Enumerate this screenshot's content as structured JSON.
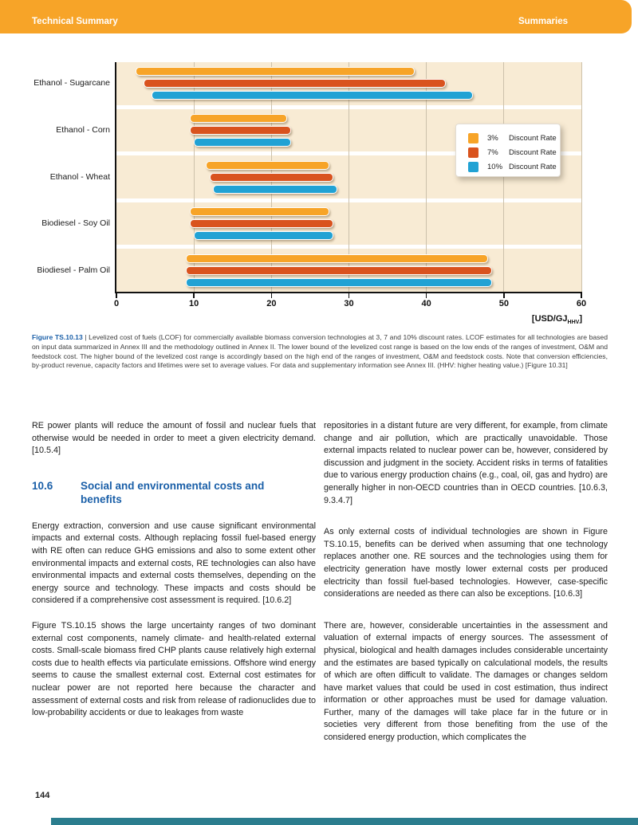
{
  "header": {
    "left": "Technical Summary",
    "right": "Summaries"
  },
  "figure_caption": {
    "label": "Figure TS.10.13",
    "separator": " | ",
    "text": "Levelized cost of fuels (LCOF) for commercially available biomass conversion technologies at 3, 7 and 10% discount rates. LCOF estimates for all technologies are based on input data summarized in Annex III and the methodology outlined in Annex II. The lower bound of the levelized cost range is based on the low ends of the ranges of investment, O&M and feedstock cost. The higher bound of the levelized cost range is accordingly based on the high end of the ranges of investment, O&M and feedstock costs. Note that conversion efficiencies, by-product revenue, capacity factors and lifetimes were set to average values. For data and supplementary information see Annex III. (HHV: higher heating value.) [Figure 10.31]"
  },
  "section": {
    "number": "10.6",
    "title": "Social and environmental costs and benefits"
  },
  "body": {
    "left_para1": "RE power plants will reduce the amount of fossil and nuclear fuels that otherwise would be needed in order to meet a given electricity demand. [10.5.4]",
    "left_para2": "Energy extraction, conversion and use cause significant environmental impacts and external costs. Although replacing fossil fuel-based energy with RE often can reduce GHG emissions and also to some extent other environmental impacts and external costs, RE technologies can also have environmental impacts and external costs themselves, depending on the energy source and technology. These impacts and costs should be considered if a comprehensive cost assessment is required. [10.6.2]",
    "left_para3": "Figure TS.10.15 shows the large uncertainty ranges of two dominant external cost components, namely climate- and health-related external costs. Small-scale biomass fired CHP plants cause relatively high external costs due to health effects via particulate emissions. Offshore wind energy seems to cause the smallest external cost. External cost estimates for nuclear power are not reported here because the character and assessment of external costs and risk from release of radionuclides due to low-probability accidents or due to leakages from waste",
    "right_para1": "repositories in a distant future are very different, for example, from climate change and air pollution, which are practically unavoidable. Those external impacts related to nuclear power can be, however, considered by discussion and judgment in the society. Accident risks in terms of fatalities due to various energy production chains (e.g., coal, oil, gas and hydro) are generally higher in non-OECD countries than in OECD countries. [10.6.3, 9.3.4.7]",
    "right_para2": "As only external costs of individual technologies are shown in Figure TS.10.15, benefits can be derived when assuming that one technology replaces another one. RE sources and the technologies using them for electricity generation have mostly lower external costs per produced electricity than fossil fuel-based technologies. However, case-specific considerations are needed as there can also be exceptions. [10.6.3]",
    "right_para3": "There are, however, considerable uncertainties in the assessment and valuation of external impacts of energy sources. The assessment of physical, biological and health damages includes considerable uncertainty and the estimates are based typically on calculational models, the results of which are often difficult to validate. The damages or changes seldom have market values that could be used in cost estimation, thus indirect information or other approaches must be used for damage valuation. Further, many of the damages will take place far in the future or in societies very different from those benefiting from the use of the considered energy production, which complicates the"
  },
  "footer": {
    "page_number": "144"
  },
  "colors": {
    "header_orange": "#F7A428",
    "plot_background": "#F8EBD4",
    "gridline": "#CCC1AB",
    "heading_blue": "#1A5FA8",
    "footer_teal": "#2B7D8E"
  },
  "chart_data": {
    "type": "bar",
    "subtype": "horizontal-range-bars",
    "title": "Levelized cost of fuels (LCOF) for commercially available biomass conversion technologies",
    "categories": [
      "Ethanol - Sugarcane",
      "Ethanol - Corn",
      "Ethanol - Wheat",
      "Biodiesel - Soy Oil",
      "Biodiesel - Palm Oil"
    ],
    "series": [
      {
        "name": "3% Discount Rate",
        "color": "#F7A428",
        "ranges": [
          [
            2.5,
            38.5
          ],
          [
            9.5,
            22.0
          ],
          [
            11.5,
            27.5
          ],
          [
            9.5,
            27.5
          ],
          [
            9.0,
            48.0
          ]
        ]
      },
      {
        "name": "7% Discount Rate",
        "color": "#D9531E",
        "ranges": [
          [
            3.5,
            42.5
          ],
          [
            9.5,
            22.5
          ],
          [
            12.0,
            28.0
          ],
          [
            9.5,
            28.0
          ],
          [
            9.0,
            48.5
          ]
        ]
      },
      {
        "name": "10% Discount Rate",
        "color": "#21A2D4",
        "ranges": [
          [
            4.5,
            46.0
          ],
          [
            10.0,
            22.5
          ],
          [
            12.5,
            28.5
          ],
          [
            10.0,
            28.0
          ],
          [
            9.0,
            48.5
          ]
        ]
      }
    ],
    "x_ticks": [
      0,
      10,
      20,
      30,
      40,
      50,
      60
    ],
    "xlim": [
      0,
      60
    ],
    "grid": "vertical",
    "legend_position": "inside-right",
    "legend": [
      {
        "pct": "3%",
        "label": "Discount Rate",
        "color": "#F7A428"
      },
      {
        "pct": "7%",
        "label": "Discount Rate",
        "color": "#D9531E"
      },
      {
        "pct": "10%",
        "label": "Discount Rate",
        "color": "#21A2D4"
      }
    ],
    "unit": {
      "prefix": "[USD/GJ",
      "sub": "HHV",
      "suffix": "]"
    }
  }
}
